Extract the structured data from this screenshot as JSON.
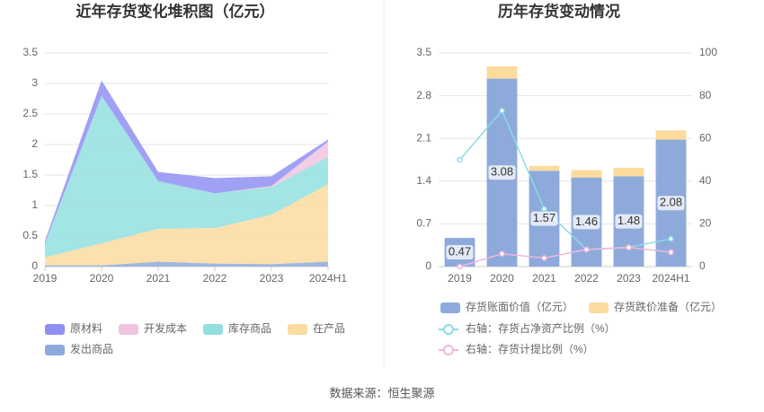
{
  "source": "数据来源：恒生聚源",
  "chart_data": [
    {
      "type": "stacked-area",
      "title": "近年存货变化堆积图（亿元）",
      "categories": [
        "2019",
        "2020",
        "2021",
        "2022",
        "2023",
        "2024H1"
      ],
      "ylim": [
        0,
        3.5
      ],
      "yticks": [
        0,
        0.5,
        1,
        1.5,
        2,
        2.5,
        3,
        3.5
      ],
      "grid": true,
      "series": [
        {
          "name": "发出商品",
          "color": "#8eaadb",
          "values": [
            0.02,
            0.02,
            0.08,
            0.05,
            0.04,
            0.08
          ]
        },
        {
          "name": "在产品",
          "color": "#fcdba0",
          "values": [
            0.13,
            0.36,
            0.54,
            0.58,
            0.81,
            1.27
          ]
        },
        {
          "name": "库存商品",
          "color": "#93dfdf",
          "values": [
            0.23,
            2.42,
            0.78,
            0.57,
            0.45,
            0.45
          ]
        },
        {
          "name": "开发成本",
          "color": "#f0c4de",
          "values": [
            0,
            0,
            0,
            0,
            0.02,
            0.25
          ]
        },
        {
          "name": "原材料",
          "color": "#8f8ff3",
          "values": [
            0.04,
            0.25,
            0.15,
            0.25,
            0.16,
            0.03
          ]
        }
      ]
    },
    {
      "type": "bar-line",
      "title": "历年存货变动情况",
      "categories": [
        "2019",
        "2020",
        "2021",
        "2022",
        "2023",
        "2024H1"
      ],
      "ylim": [
        0,
        3.5
      ],
      "yticks": [
        0,
        0.7,
        1.4,
        2.1,
        2.8,
        3.5
      ],
      "y2lim": [
        0,
        100
      ],
      "y2ticks": [
        0,
        20,
        40,
        60,
        80,
        100
      ],
      "grid": true,
      "series": [
        {
          "name": "存货账面价值（亿元）",
          "color": "#8eaadb",
          "values": [
            0.47,
            3.08,
            1.57,
            1.46,
            1.48,
            2.08
          ],
          "show_labels": true
        },
        {
          "name": "存货跌价准备（亿元）",
          "color": "#fddb9c",
          "values": [
            0,
            0.2,
            0.08,
            0.12,
            0.14,
            0.15
          ]
        },
        {
          "name": "右轴：存货占净资产比例（%）",
          "color": "#88dde5",
          "axis": "y2",
          "values": [
            50,
            73,
            27,
            8,
            9,
            13
          ]
        },
        {
          "name": "右轴：存货计提比例（%）",
          "color": "#f0b8dc",
          "axis": "y2",
          "values": [
            0,
            6,
            4,
            8,
            9,
            6.7
          ]
        }
      ]
    }
  ]
}
